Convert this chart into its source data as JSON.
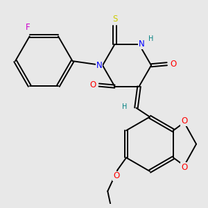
{
  "background_color": "#e8e8e8",
  "figure_size": [
    3.0,
    3.0
  ],
  "dpi": 100,
  "atom_colors": {
    "C": "#000000",
    "N": "#0000ff",
    "O": "#ff0000",
    "S": "#cccc00",
    "F": "#cc00cc",
    "H": "#008080"
  },
  "bond_color": "#000000",
  "bond_width": 1.4,
  "font_size_atom": 8.5,
  "font_size_small": 7.0
}
